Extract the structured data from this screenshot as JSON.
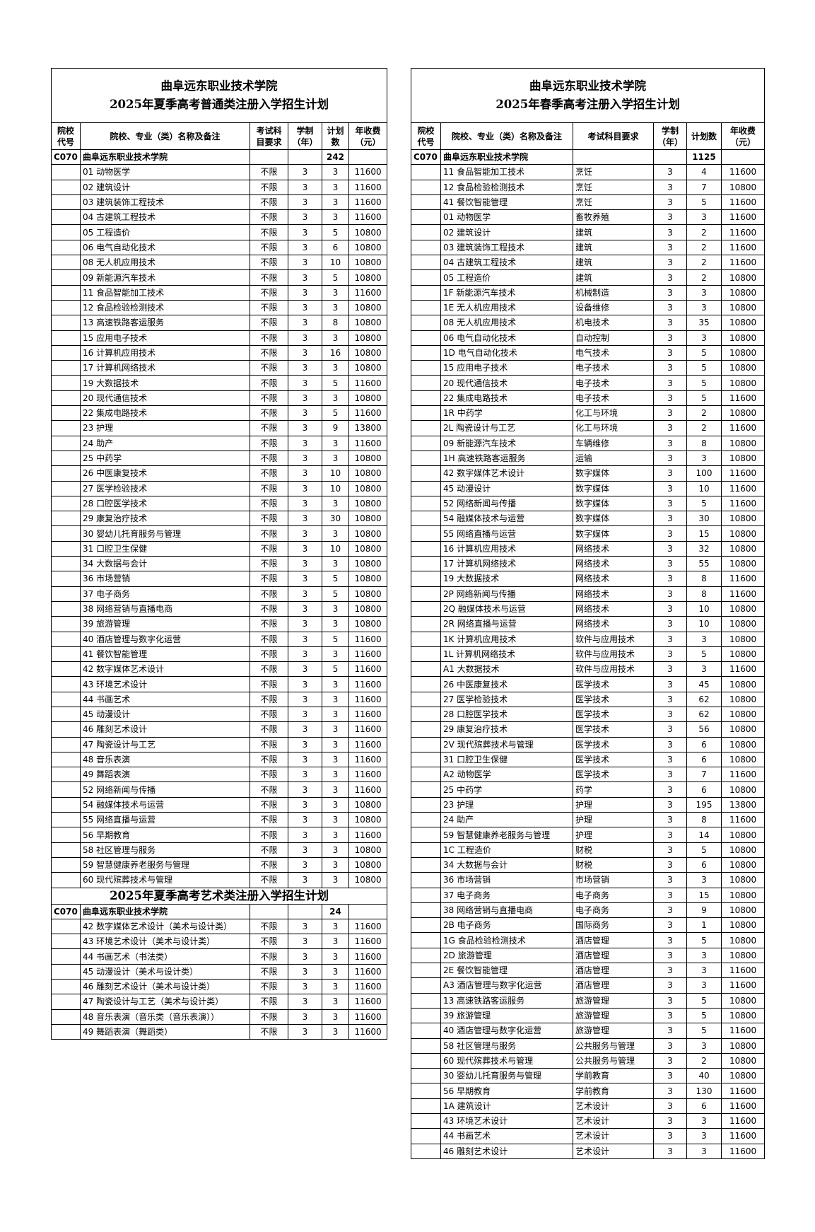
{
  "left": {
    "title_line1": "曲阜远东职业技术学院",
    "title_line2": "2025年夏季高考普通类注册入学招生计划",
    "headers": [
      "院校代号",
      "院校、专业（类）名称及备注",
      "考试科目要求",
      "学制（年）",
      "计划数",
      "年收费（元）"
    ],
    "school": {
      "code": "C070",
      "name": "曲阜远东职业技术学院",
      "plan": "242"
    },
    "rows": [
      [
        "01 动物医学",
        "不限",
        "3",
        "3",
        "11600"
      ],
      [
        "02 建筑设计",
        "不限",
        "3",
        "3",
        "11600"
      ],
      [
        "03 建筑装饰工程技术",
        "不限",
        "3",
        "3",
        "11600"
      ],
      [
        "04 古建筑工程技术",
        "不限",
        "3",
        "3",
        "11600"
      ],
      [
        "05 工程造价",
        "不限",
        "3",
        "5",
        "10800"
      ],
      [
        "06 电气自动化技术",
        "不限",
        "3",
        "6",
        "10800"
      ],
      [
        "08 无人机应用技术",
        "不限",
        "3",
        "10",
        "10800"
      ],
      [
        "09 新能源汽车技术",
        "不限",
        "3",
        "5",
        "10800"
      ],
      [
        "11 食品智能加工技术",
        "不限",
        "3",
        "3",
        "11600"
      ],
      [
        "12 食品检验检测技术",
        "不限",
        "3",
        "3",
        "10800"
      ],
      [
        "13 高速铁路客运服务",
        "不限",
        "3",
        "8",
        "10800"
      ],
      [
        "15 应用电子技术",
        "不限",
        "3",
        "3",
        "10800"
      ],
      [
        "16 计算机应用技术",
        "不限",
        "3",
        "16",
        "10800"
      ],
      [
        "17 计算机网络技术",
        "不限",
        "3",
        "3",
        "10800"
      ],
      [
        "19 大数据技术",
        "不限",
        "3",
        "5",
        "11600"
      ],
      [
        "20 现代通信技术",
        "不限",
        "3",
        "3",
        "10800"
      ],
      [
        "22 集成电路技术",
        "不限",
        "3",
        "5",
        "11600"
      ],
      [
        "23 护理",
        "不限",
        "3",
        "9",
        "13800"
      ],
      [
        "24 助产",
        "不限",
        "3",
        "3",
        "11600"
      ],
      [
        "25 中药学",
        "不限",
        "3",
        "3",
        "10800"
      ],
      [
        "26 中医康复技术",
        "不限",
        "3",
        "10",
        "10800"
      ],
      [
        "27 医学检验技术",
        "不限",
        "3",
        "10",
        "10800"
      ],
      [
        "28 口腔医学技术",
        "不限",
        "3",
        "3",
        "10800"
      ],
      [
        "29 康复治疗技术",
        "不限",
        "3",
        "30",
        "10800"
      ],
      [
        "30 婴幼儿托育服务与管理",
        "不限",
        "3",
        "3",
        "10800"
      ],
      [
        "31 口腔卫生保健",
        "不限",
        "3",
        "10",
        "10800"
      ],
      [
        "34 大数据与会计",
        "不限",
        "3",
        "3",
        "10800"
      ],
      [
        "36 市场营销",
        "不限",
        "3",
        "5",
        "10800"
      ],
      [
        "37 电子商务",
        "不限",
        "3",
        "5",
        "10800"
      ],
      [
        "38 网络营销与直播电商",
        "不限",
        "3",
        "3",
        "10800"
      ],
      [
        "39 旅游管理",
        "不限",
        "3",
        "3",
        "10800"
      ],
      [
        "40 酒店管理与数字化运营",
        "不限",
        "3",
        "5",
        "11600"
      ],
      [
        "41 餐饮智能管理",
        "不限",
        "3",
        "3",
        "11600"
      ],
      [
        "42 数字媒体艺术设计",
        "不限",
        "3",
        "5",
        "11600"
      ],
      [
        "43 环境艺术设计",
        "不限",
        "3",
        "3",
        "11600"
      ],
      [
        "44 书画艺术",
        "不限",
        "3",
        "3",
        "11600"
      ],
      [
        "45 动漫设计",
        "不限",
        "3",
        "3",
        "11600"
      ],
      [
        "46 雕刻艺术设计",
        "不限",
        "3",
        "3",
        "11600"
      ],
      [
        "47 陶瓷设计与工艺",
        "不限",
        "3",
        "3",
        "11600"
      ],
      [
        "48 音乐表演",
        "不限",
        "3",
        "3",
        "11600"
      ],
      [
        "49 舞蹈表演",
        "不限",
        "3",
        "3",
        "11600"
      ],
      [
        "52 网络新闻与传播",
        "不限",
        "3",
        "3",
        "11600"
      ],
      [
        "54 融媒体技术与运营",
        "不限",
        "3",
        "3",
        "10800"
      ],
      [
        "55 网络直播与运营",
        "不限",
        "3",
        "3",
        "10800"
      ],
      [
        "56 早期教育",
        "不限",
        "3",
        "3",
        "11600"
      ],
      [
        "58 社区管理与服务",
        "不限",
        "3",
        "3",
        "10800"
      ],
      [
        "59 智慧健康养老服务与管理",
        "不限",
        "3",
        "3",
        "10800"
      ],
      [
        "60 现代殡葬技术与管理",
        "不限",
        "3",
        "3",
        "10800"
      ]
    ],
    "art_title": "2025年夏季高考艺术类注册入学招生计划",
    "art_school": {
      "code": "C070",
      "name": "曲阜远东职业技术学院",
      "plan": "24"
    },
    "art_rows": [
      [
        "42 数字媒体艺术设计（美术与设计类）",
        "不限",
        "3",
        "3",
        "11600"
      ],
      [
        "43 环境艺术设计（美术与设计类）",
        "不限",
        "3",
        "3",
        "11600"
      ],
      [
        "44 书画艺术（书法类）",
        "不限",
        "3",
        "3",
        "11600"
      ],
      [
        "45 动漫设计（美术与设计类）",
        "不限",
        "3",
        "3",
        "11600"
      ],
      [
        "46 雕刻艺术设计（美术与设计类）",
        "不限",
        "3",
        "3",
        "11600"
      ],
      [
        "47 陶瓷设计与工艺（美术与设计类）",
        "不限",
        "3",
        "3",
        "11600"
      ],
      [
        "48 音乐表演（音乐类（音乐表演））",
        "不限",
        "3",
        "3",
        "11600"
      ],
      [
        "49 舞蹈表演（舞蹈类）",
        "不限",
        "3",
        "3",
        "11600"
      ]
    ]
  },
  "right": {
    "title_line1": "曲阜远东职业技术学院",
    "title_line2": "2025年春季高考注册入学招生计划",
    "headers": [
      "院校代号",
      "院校、专业（类）名称及备注",
      "考试科目要求",
      "学制（年）",
      "计划数",
      "年收费（元）"
    ],
    "school": {
      "code": "C070",
      "name": "曲阜远东职业技术学院",
      "plan": "1125"
    },
    "rows": [
      [
        "11 食品智能加工技术",
        "烹饪",
        "3",
        "4",
        "11600"
      ],
      [
        "12 食品检验检测技术",
        "烹饪",
        "3",
        "7",
        "10800"
      ],
      [
        "41 餐饮智能管理",
        "烹饪",
        "3",
        "5",
        "11600"
      ],
      [
        "01 动物医学",
        "畜牧养殖",
        "3",
        "3",
        "11600"
      ],
      [
        "02 建筑设计",
        "建筑",
        "3",
        "2",
        "11600"
      ],
      [
        "03 建筑装饰工程技术",
        "建筑",
        "3",
        "2",
        "11600"
      ],
      [
        "04 古建筑工程技术",
        "建筑",
        "3",
        "2",
        "11600"
      ],
      [
        "05 工程造价",
        "建筑",
        "3",
        "2",
        "10800"
      ],
      [
        "1F 新能源汽车技术",
        "机械制造",
        "3",
        "3",
        "10800"
      ],
      [
        "1E 无人机应用技术",
        "设备维修",
        "3",
        "3",
        "10800"
      ],
      [
        "08 无人机应用技术",
        "机电技术",
        "3",
        "35",
        "10800"
      ],
      [
        "06 电气自动化技术",
        "自动控制",
        "3",
        "3",
        "10800"
      ],
      [
        "1D 电气自动化技术",
        "电气技术",
        "3",
        "5",
        "10800"
      ],
      [
        "15 应用电子技术",
        "电子技术",
        "3",
        "5",
        "10800"
      ],
      [
        "20 现代通信技术",
        "电子技术",
        "3",
        "5",
        "10800"
      ],
      [
        "22 集成电路技术",
        "电子技术",
        "3",
        "5",
        "11600"
      ],
      [
        "1R 中药学",
        "化工与环境",
        "3",
        "2",
        "10800"
      ],
      [
        "2L 陶瓷设计与工艺",
        "化工与环境",
        "3",
        "2",
        "11600"
      ],
      [
        "09 新能源汽车技术",
        "车辆维修",
        "3",
        "8",
        "10800"
      ],
      [
        "1H 高速铁路客运服务",
        "运输",
        "3",
        "3",
        "10800"
      ],
      [
        "42 数字媒体艺术设计",
        "数字媒体",
        "3",
        "100",
        "11600"
      ],
      [
        "45 动漫设计",
        "数字媒体",
        "3",
        "10",
        "11600"
      ],
      [
        "52 网络新闻与传播",
        "数字媒体",
        "3",
        "5",
        "11600"
      ],
      [
        "54 融媒体技术与运营",
        "数字媒体",
        "3",
        "30",
        "10800"
      ],
      [
        "55 网络直播与运营",
        "数字媒体",
        "3",
        "15",
        "10800"
      ],
      [
        "16 计算机应用技术",
        "网络技术",
        "3",
        "32",
        "10800"
      ],
      [
        "17 计算机网络技术",
        "网络技术",
        "3",
        "55",
        "10800"
      ],
      [
        "19 大数据技术",
        "网络技术",
        "3",
        "8",
        "11600"
      ],
      [
        "2P 网络新闻与传播",
        "网络技术",
        "3",
        "8",
        "11600"
      ],
      [
        "2Q 融媒体技术与运营",
        "网络技术",
        "3",
        "10",
        "10800"
      ],
      [
        "2R 网络直播与运营",
        "网络技术",
        "3",
        "10",
        "10800"
      ],
      [
        "1K 计算机应用技术",
        "软件与应用技术",
        "3",
        "3",
        "10800"
      ],
      [
        "1L 计算机网络技术",
        "软件与应用技术",
        "3",
        "5",
        "10800"
      ],
      [
        "A1 大数据技术",
        "软件与应用技术",
        "3",
        "3",
        "11600"
      ],
      [
        "26 中医康复技术",
        "医学技术",
        "3",
        "45",
        "10800"
      ],
      [
        "27 医学检验技术",
        "医学技术",
        "3",
        "62",
        "10800"
      ],
      [
        "28 口腔医学技术",
        "医学技术",
        "3",
        "62",
        "10800"
      ],
      [
        "29 康复治疗技术",
        "医学技术",
        "3",
        "56",
        "10800"
      ],
      [
        "2V 现代殡葬技术与管理",
        "医学技术",
        "3",
        "6",
        "10800"
      ],
      [
        "31 口腔卫生保健",
        "医学技术",
        "3",
        "6",
        "10800"
      ],
      [
        "A2 动物医学",
        "医学技术",
        "3",
        "7",
        "11600"
      ],
      [
        "25 中药学",
        "药学",
        "3",
        "6",
        "10800"
      ],
      [
        "23 护理",
        "护理",
        "3",
        "195",
        "13800"
      ],
      [
        "24 助产",
        "护理",
        "3",
        "8",
        "11600"
      ],
      [
        "59 智慧健康养老服务与管理",
        "护理",
        "3",
        "14",
        "10800"
      ],
      [
        "1C 工程造价",
        "财税",
        "3",
        "5",
        "10800"
      ],
      [
        "34 大数据与会计",
        "财税",
        "3",
        "6",
        "10800"
      ],
      [
        "36 市场营销",
        "市场营销",
        "3",
        "3",
        "10800"
      ],
      [
        "37 电子商务",
        "电子商务",
        "3",
        "15",
        "10800"
      ],
      [
        "38 网络营销与直播电商",
        "电子商务",
        "3",
        "9",
        "10800"
      ],
      [
        "2B 电子商务",
        "国际商务",
        "3",
        "1",
        "10800"
      ],
      [
        "1G 食品检验检测技术",
        "酒店管理",
        "3",
        "5",
        "10800"
      ],
      [
        "2D 旅游管理",
        "酒店管理",
        "3",
        "3",
        "10800"
      ],
      [
        "2E 餐饮智能管理",
        "酒店管理",
        "3",
        "3",
        "11600"
      ],
      [
        "A3 酒店管理与数字化运营",
        "酒店管理",
        "3",
        "3",
        "11600"
      ],
      [
        "13 高速铁路客运服务",
        "旅游管理",
        "3",
        "5",
        "10800"
      ],
      [
        "39 旅游管理",
        "旅游管理",
        "3",
        "5",
        "10800"
      ],
      [
        "40 酒店管理与数字化运营",
        "旅游管理",
        "3",
        "5",
        "11600"
      ],
      [
        "58 社区管理与服务",
        "公共服务与管理",
        "3",
        "3",
        "10800"
      ],
      [
        "60 现代殡葬技术与管理",
        "公共服务与管理",
        "3",
        "2",
        "10800"
      ],
      [
        "30 婴幼儿托育服务与管理",
        "学前教育",
        "3",
        "40",
        "10800"
      ],
      [
        "56 早期教育",
        "学前教育",
        "3",
        "130",
        "11600"
      ],
      [
        "1A 建筑设计",
        "艺术设计",
        "3",
        "6",
        "11600"
      ],
      [
        "43 环境艺术设计",
        "艺术设计",
        "3",
        "3",
        "11600"
      ],
      [
        "44 书画艺术",
        "艺术设计",
        "3",
        "3",
        "11600"
      ],
      [
        "46 雕刻艺术设计",
        "艺术设计",
        "3",
        "3",
        "11600"
      ]
    ]
  }
}
